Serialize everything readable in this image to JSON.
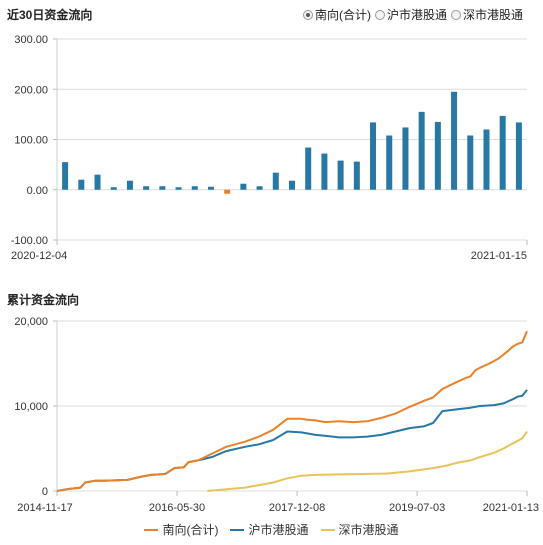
{
  "chart1_title": "近30日资金流向",
  "chart2_title": "累计资金流向",
  "radios": [
    {
      "label": "南向(合计)",
      "selected": true
    },
    {
      "label": "沪市港股通",
      "selected": false
    },
    {
      "label": "深市港股通",
      "selected": false
    }
  ],
  "chart_data": [
    {
      "type": "bar",
      "title": "近30日资金流向",
      "ylim": [
        -100,
        300
      ],
      "yticks": [
        "300.00",
        "200.00",
        "100.00",
        "0.00",
        "-100.00"
      ],
      "ytick_values": [
        300,
        200,
        100,
        0,
        -100
      ],
      "x_start_label": "2020-12-04",
      "x_end_label": "2021-01-15",
      "color_positive": "#2878a5",
      "color_negative": "#e8822a",
      "values": [
        55,
        20,
        30,
        5,
        18,
        7,
        7,
        5,
        7,
        6,
        -8,
        12,
        7,
        34,
        18,
        84,
        72,
        58,
        56,
        134,
        108,
        124,
        155,
        135,
        195,
        108,
        120,
        147,
        134
      ]
    },
    {
      "type": "line",
      "title": "累计资金流向",
      "ylim": [
        0,
        20000
      ],
      "yticks": [
        "20,000",
        "10,000",
        "0"
      ],
      "ytick_values": [
        20000,
        10000,
        0
      ],
      "x_labels": [
        "2014-11-17",
        "2016-05-30",
        "2017-12-08",
        "2019-07-03",
        "2021-01-13"
      ],
      "x_label_positions": [
        0,
        0.2554,
        0.5108,
        0.7662,
        1.0
      ],
      "series": [
        {
          "name": "南向(合计)",
          "color": "#e8822a",
          "x": [
            0,
            0.02,
            0.05,
            0.06,
            0.08,
            0.1,
            0.15,
            0.18,
            0.2,
            0.23,
            0.25,
            0.27,
            0.28,
            0.3,
            0.33,
            0.36,
            0.4,
            0.43,
            0.46,
            0.49,
            0.52,
            0.53,
            0.55,
            0.57,
            0.6,
            0.63,
            0.66,
            0.69,
            0.72,
            0.75,
            0.78,
            0.8,
            0.82,
            0.85,
            0.87,
            0.88,
            0.89,
            0.9,
            0.92,
            0.94,
            0.96,
            0.97,
            0.98,
            0.99,
            1.0
          ],
          "y": [
            0,
            200,
            400,
            1000,
            1200,
            1200,
            1300,
            1700,
            1900,
            2000,
            2700,
            2800,
            3400,
            3600,
            4400,
            5200,
            5800,
            6400,
            7200,
            8500,
            8500,
            8400,
            8300,
            8100,
            8200,
            8100,
            8200,
            8600,
            9100,
            9900,
            10600,
            11000,
            12000,
            12800,
            13300,
            13500,
            14200,
            14500,
            15000,
            15600,
            16500,
            17000,
            17300,
            17500,
            18800
          ]
        },
        {
          "name": "沪市港股通",
          "color": "#2878a5",
          "x": [
            0,
            0.02,
            0.05,
            0.06,
            0.08,
            0.1,
            0.15,
            0.18,
            0.2,
            0.23,
            0.25,
            0.27,
            0.28,
            0.3,
            0.33,
            0.36,
            0.4,
            0.43,
            0.46,
            0.49,
            0.52,
            0.55,
            0.57,
            0.6,
            0.63,
            0.66,
            0.69,
            0.72,
            0.75,
            0.78,
            0.8,
            0.82,
            0.85,
            0.88,
            0.9,
            0.93,
            0.95,
            0.97,
            0.98,
            0.99,
            1.0
          ],
          "y": [
            0,
            200,
            400,
            1000,
            1200,
            1200,
            1300,
            1700,
            1900,
            2000,
            2700,
            2800,
            3400,
            3600,
            4000,
            4700,
            5200,
            5500,
            6000,
            7000,
            6900,
            6600,
            6500,
            6300,
            6300,
            6400,
            6600,
            7000,
            7400,
            7600,
            8000,
            9400,
            9600,
            9800,
            10000,
            10100,
            10300,
            10800,
            11100,
            11200,
            11900
          ]
        },
        {
          "name": "深市港股通",
          "color": "#e8c25a",
          "x": [
            0.32,
            0.36,
            0.4,
            0.43,
            0.46,
            0.49,
            0.52,
            0.55,
            0.6,
            0.65,
            0.7,
            0.75,
            0.8,
            0.83,
            0.85,
            0.88,
            0.9,
            0.93,
            0.95,
            0.97,
            0.99,
            1.0
          ],
          "y": [
            0,
            200,
            400,
            700,
            1000,
            1500,
            1800,
            1900,
            1950,
            2000,
            2050,
            2300,
            2700,
            3000,
            3300,
            3600,
            4000,
            4500,
            5000,
            5600,
            6200,
            7000
          ]
        }
      ]
    }
  ]
}
